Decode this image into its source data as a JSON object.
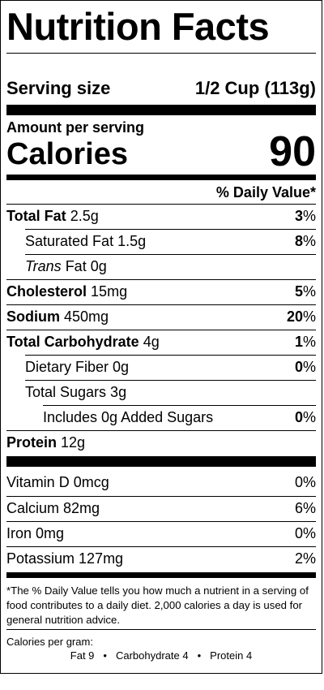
{
  "title": "Nutrition Facts",
  "serving": {
    "label": "Serving size",
    "value": "1/2 Cup  (113g)"
  },
  "amount_per_serving": "Amount per serving",
  "calories": {
    "label": "Calories",
    "value": "90"
  },
  "dv_header": "% Daily Value*",
  "nutrients": {
    "total_fat": {
      "name": "Total Fat",
      "amount": "2.5g",
      "dv_num": "3",
      "dv_pct": "%"
    },
    "saturated_fat": {
      "name": "Saturated Fat 1.5g",
      "dv_num": "8",
      "dv_pct": "%"
    },
    "trans_fat": {
      "name_italic": "Trans",
      "name_rest": " Fat 0g"
    },
    "cholesterol": {
      "name": "Cholesterol",
      "amount": "15mg",
      "dv_num": "5",
      "dv_pct": "%"
    },
    "sodium": {
      "name": "Sodium",
      "amount": "450mg",
      "dv_num": "20",
      "dv_pct": "%"
    },
    "total_carb": {
      "name": "Total Carbohydrate",
      "amount": "4g",
      "dv_num": "1",
      "dv_pct": "%"
    },
    "fiber": {
      "name": "Dietary Fiber 0g",
      "dv_num": "0",
      "dv_pct": "%"
    },
    "total_sugars": {
      "name": "Total Sugars 3g"
    },
    "added_sugars": {
      "name": "Includes 0g Added Sugars",
      "dv_num": "0",
      "dv_pct": "%"
    },
    "protein": {
      "name": "Protein",
      "amount": "12g"
    }
  },
  "vitamins": {
    "vitamin_d": {
      "name": "Vitamin D 0mcg",
      "dv": "0%"
    },
    "calcium": {
      "name": "Calcium 82mg",
      "dv": "6%"
    },
    "iron": {
      "name": "Iron 0mg",
      "dv": "0%"
    },
    "potassium": {
      "name": "Potassium 127mg",
      "dv": "2%"
    }
  },
  "footnote": "*The % Daily Value tells you how much a nutrient in a serving of food contributes to a daily diet. 2,000 calories a day is used for general nutrition advice.",
  "calories_per_gram": {
    "label": "Calories per gram:",
    "fat": "Fat 9",
    "carb": "Carbohydrate 4",
    "protein": "Protein 4",
    "separator": "•"
  }
}
